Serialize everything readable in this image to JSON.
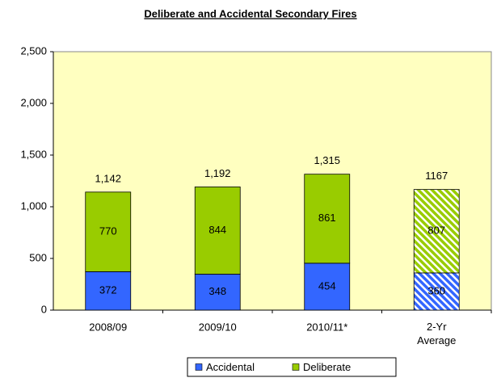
{
  "chart_data": {
    "type": "stacked-bar",
    "title": "Deliberate and Accidental Secondary Fires",
    "categories": [
      "2008/09",
      "2009/10",
      "2010/11*",
      "2-Yr Average"
    ],
    "series": [
      {
        "name": "Accidental",
        "color": "#3366ff",
        "values": [
          372,
          348,
          454,
          360
        ]
      },
      {
        "name": "Deliberate",
        "color": "#99cc00",
        "values": [
          770,
          844,
          861,
          807
        ]
      }
    ],
    "totals": [
      1142,
      1192,
      1315,
      1167
    ],
    "totals_labels": [
      "1,142",
      "1,192",
      "1,315",
      "1167"
    ],
    "hatched": [
      false,
      false,
      false,
      true
    ],
    "ylim": [
      0,
      2500
    ],
    "yticks": [
      0,
      {
        "value": 500,
        "label": "500"
      },
      {
        "value": 1000,
        "label": "1,000"
      },
      {
        "value": 1500,
        "label": "1,500"
      },
      {
        "value": 2000,
        "label": "2,000"
      },
      {
        "value": 2500,
        "label": "2,500"
      }
    ],
    "legend": "bottom"
  }
}
